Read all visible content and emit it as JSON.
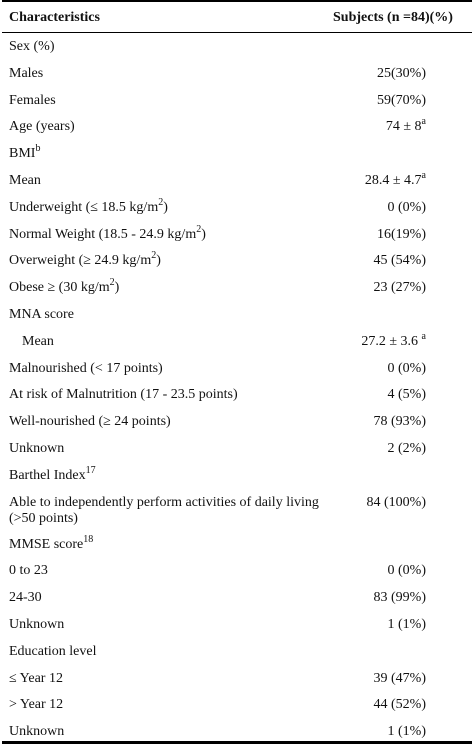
{
  "header": {
    "col1": "Characteristics",
    "col2": "Subjects (n =84)(%)"
  },
  "rows": [
    {
      "label": "Sex (%)",
      "value": ""
    },
    {
      "label": "Males",
      "value": "25(30%)"
    },
    {
      "label": "Females",
      "value": "59(70%)"
    },
    {
      "label": "Age (years)",
      "value": "74 ± 8",
      "value_sup": "a"
    },
    {
      "label": "BMI",
      "label_sup": "b",
      "value": ""
    },
    {
      "label": "Mean",
      "value": "28.4 ± 4.7",
      "value_sup": "a"
    },
    {
      "label": "Underweight (≤ 18.5 kg/m",
      "label_sup": "2",
      "label_tail": ")",
      "value": "0 (0%)"
    },
    {
      "label": "Normal Weight (18.5 - 24.9 kg/m",
      "label_sup": "2",
      "label_tail": ")",
      "value": "16(19%)"
    },
    {
      "label": "Overweight (≥ 24.9 kg/m",
      "label_sup": "2",
      "label_tail": ")",
      "value": "45 (54%)"
    },
    {
      "label": "Obese ≥ (30 kg/m",
      "label_sup": "2",
      "label_tail": ")",
      "value": "23 (27%)"
    },
    {
      "label": "MNA score",
      "value": ""
    },
    {
      "label": "Mean",
      "value": "27.2 ± 3.6 ",
      "value_sup": "a",
      "indent": true
    },
    {
      "label": "Malnourished (< 17 points)",
      "value": "0 (0%)"
    },
    {
      "label": "At risk of Malnutrition (17 - 23.5 points)",
      "value": "4 (5%)"
    },
    {
      "label": "Well-nourished (≥ 24 points)",
      "value": "78 (93%)"
    },
    {
      "label": "Unknown",
      "value": "2 (2%)"
    },
    {
      "label": "Barthel Index",
      "label_sup": "17",
      "value": ""
    },
    {
      "label": "Able to independently perform activities of daily living (>50 points)",
      "value": "84 (100%)",
      "tall": true
    },
    {
      "label": "MMSE score",
      "label_sup": "18",
      "value": ""
    },
    {
      "label": "0 to 23",
      "value": "0 (0%)"
    },
    {
      "label": "24-30",
      "value": "83 (99%)"
    },
    {
      "label": "Unknown",
      "value": "1 (1%)"
    },
    {
      "label": "Education level",
      "value": ""
    },
    {
      "label": "≤ Year 12",
      "value": "39 (47%)"
    },
    {
      "label": "> Year 12",
      "value": "44 (52%)"
    },
    {
      "label": "Unknown",
      "value": "1 (1%)"
    }
  ]
}
